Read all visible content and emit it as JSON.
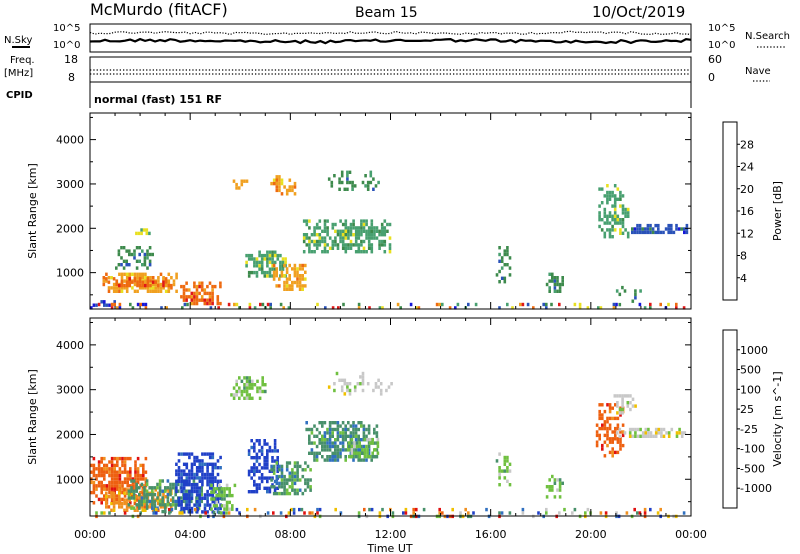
{
  "header": {
    "title": "McMurdo (fitACF)",
    "beam": "Beam 15",
    "date": "10/Oct/2019"
  },
  "ops_panels": {
    "nsky_label": "N.Sky",
    "nsearch_label": "N.Search",
    "noise_ticks_left": [
      "10^5",
      "10^0"
    ],
    "noise_ticks_right": [
      "10^5",
      "10^0"
    ],
    "freq_label": "Freq.",
    "freq_unit": "[MHz]",
    "freq_ticks": [
      "18",
      "8"
    ],
    "nave_label": "Nave",
    "nave_ticks": [
      "60",
      "0"
    ],
    "cpid_label": "CPID",
    "cpid_value": "normal (fast) 151 RF"
  },
  "chart_data": [
    {
      "type": "heatmap",
      "parameter": "Power",
      "ylabel": "Slant Range [km]",
      "xlabel": "",
      "x_ticks": [
        "00:00",
        "04:00",
        "08:00",
        "12:00",
        "16:00",
        "20:00",
        "00:00"
      ],
      "y_ticks": [
        1000,
        2000,
        3000,
        4000
      ],
      "ylim": [
        180,
        4600
      ],
      "colorbar": {
        "label": "Power [dB]",
        "ticks": [
          "4",
          "8",
          "12",
          "16",
          "20",
          "24",
          "28"
        ],
        "colors": [
          "#1616d8",
          "#2a52b8",
          "#3d8a4c",
          "#48a070",
          "#e8e020",
          "#f0a020",
          "#ee6a10",
          "#e01818"
        ]
      },
      "regions": [
        {
          "t0": 0.0,
          "t1": 1.0,
          "r0": 180,
          "r1": 380,
          "color": 1,
          "density": 0.5
        },
        {
          "t0": 0.5,
          "t1": 3.5,
          "r0": 600,
          "r1": 1000,
          "color": 5,
          "density": 0.9
        },
        {
          "t0": 0.6,
          "t1": 3.3,
          "r0": 700,
          "r1": 900,
          "color": 6,
          "density": 0.7
        },
        {
          "t0": 3.6,
          "t1": 5.2,
          "r0": 280,
          "r1": 800,
          "color": 6,
          "density": 0.85
        },
        {
          "t0": 1.0,
          "t1": 2.5,
          "r0": 1100,
          "r1": 1600,
          "color": 2,
          "density": 0.6
        },
        {
          "t0": 1.8,
          "t1": 2.4,
          "r0": 1850,
          "r1": 2000,
          "color": 4,
          "density": 0.7
        },
        {
          "t0": 5.7,
          "t1": 6.3,
          "r0": 2900,
          "r1": 3100,
          "color": 5,
          "density": 0.8
        },
        {
          "t0": 6.2,
          "t1": 7.8,
          "r0": 900,
          "r1": 1500,
          "color": 3,
          "density": 0.75
        },
        {
          "t0": 7.3,
          "t1": 8.6,
          "r0": 600,
          "r1": 1200,
          "color": 5,
          "density": 0.85
        },
        {
          "t0": 7.2,
          "t1": 8.2,
          "r0": 2800,
          "r1": 3200,
          "color": 5,
          "density": 0.6
        },
        {
          "t0": 8.5,
          "t1": 12.0,
          "r0": 1500,
          "r1": 2200,
          "color": 3,
          "density": 0.8
        },
        {
          "t0": 9.5,
          "t1": 11.5,
          "r0": 2900,
          "r1": 3300,
          "color": 2,
          "density": 0.35
        },
        {
          "t0": 16.2,
          "t1": 16.8,
          "r0": 800,
          "r1": 1600,
          "color": 2,
          "density": 0.5
        },
        {
          "t0": 18.2,
          "t1": 18.9,
          "r0": 600,
          "r1": 1000,
          "color": 2,
          "density": 0.7
        },
        {
          "t0": 20.3,
          "t1": 21.5,
          "r0": 1800,
          "r1": 3000,
          "color": 3,
          "density": 0.65
        },
        {
          "t0": 21.5,
          "t1": 23.8,
          "r0": 1900,
          "r1": 2100,
          "color": 1,
          "density": 0.85
        },
        {
          "t0": 21.0,
          "t1": 22.0,
          "r0": 300,
          "r1": 700,
          "color": 2,
          "density": 0.4
        }
      ],
      "noise_floor": {
        "r0": 180,
        "r1": 320,
        "density": 0.35
      }
    },
    {
      "type": "heatmap",
      "parameter": "Velocity",
      "ylabel": "Slant Range [km]",
      "xlabel": "Time UT",
      "x_ticks": [
        "00:00",
        "04:00",
        "08:00",
        "12:00",
        "16:00",
        "20:00",
        "00:00"
      ],
      "y_ticks": [
        1000,
        2000,
        3000,
        4000
      ],
      "ylim": [
        180,
        4600
      ],
      "colorbar": {
        "label": "Velocity [m s^-1]",
        "ticks": [
          "1000",
          "500",
          "100",
          "25",
          "-25",
          "-100",
          "-500",
          "-1000"
        ],
        "colors": [
          "#2040c8",
          "#3070c0",
          "#48906a",
          "#70c040",
          "#c8c8c8",
          "#f0c000",
          "#f09020",
          "#ee6010",
          "#e01010"
        ]
      },
      "regions": [
        {
          "t0": 0.0,
          "t1": 2.2,
          "r0": 500,
          "r1": 1500,
          "color": 7,
          "density": 0.85
        },
        {
          "t0": 0.6,
          "t1": 3.2,
          "r0": 300,
          "r1": 800,
          "color": 6,
          "density": 0.7
        },
        {
          "t0": 1.5,
          "t1": 4.5,
          "r0": 300,
          "r1": 1000,
          "color": 2,
          "density": 0.7
        },
        {
          "t0": 3.4,
          "t1": 5.2,
          "r0": 250,
          "r1": 1600,
          "color": 0,
          "density": 0.8
        },
        {
          "t0": 4.8,
          "t1": 5.8,
          "r0": 250,
          "r1": 900,
          "color": 3,
          "density": 0.6
        },
        {
          "t0": 6.3,
          "t1": 7.5,
          "r0": 700,
          "r1": 1900,
          "color": 0,
          "density": 0.75
        },
        {
          "t0": 7.2,
          "t1": 8.8,
          "r0": 700,
          "r1": 1400,
          "color": 2,
          "density": 0.75
        },
        {
          "t0": 5.6,
          "t1": 7.0,
          "r0": 2800,
          "r1": 3300,
          "color": 3,
          "density": 0.55
        },
        {
          "t0": 8.6,
          "t1": 11.5,
          "r0": 1400,
          "r1": 2300,
          "color": 2,
          "density": 0.8
        },
        {
          "t0": 10.2,
          "t1": 11.5,
          "r0": 1500,
          "r1": 2000,
          "color": 3,
          "density": 0.6
        },
        {
          "t0": 9.5,
          "t1": 12.0,
          "r0": 2900,
          "r1": 3400,
          "color": 4,
          "density": 0.3
        },
        {
          "t0": 16.2,
          "t1": 16.9,
          "r0": 900,
          "r1": 1600,
          "color": 3,
          "density": 0.5
        },
        {
          "t0": 18.2,
          "t1": 18.9,
          "r0": 600,
          "r1": 1100,
          "color": 3,
          "density": 0.7
        },
        {
          "t0": 20.2,
          "t1": 21.3,
          "r0": 1500,
          "r1": 2700,
          "color": 7,
          "density": 0.6
        },
        {
          "t0": 21.0,
          "t1": 23.8,
          "r0": 1950,
          "r1": 2150,
          "color": 4,
          "density": 0.85
        },
        {
          "t0": 20.8,
          "t1": 21.8,
          "r0": 2500,
          "r1": 2900,
          "color": 4,
          "density": 0.6
        }
      ],
      "noise_floor": {
        "r0": 180,
        "r1": 360,
        "density": 0.4
      }
    }
  ]
}
